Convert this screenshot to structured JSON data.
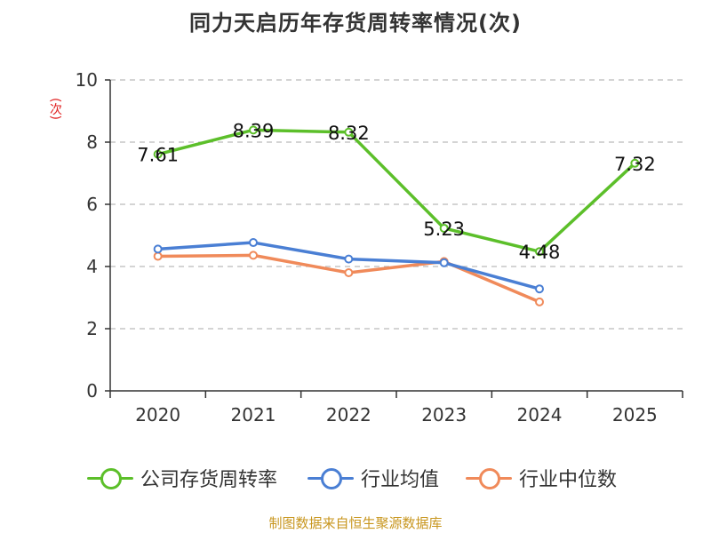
{
  "chart_data": {
    "type": "line",
    "title": "同力天启历年存货周转率情况(次)",
    "ylabel": "(次)",
    "xlabel": "",
    "categories": [
      "2020",
      "2021",
      "2022",
      "2023",
      "2024",
      "2025"
    ],
    "ylim": [
      0,
      10
    ],
    "yticks": [
      0,
      2,
      4,
      6,
      8,
      10
    ],
    "grid": true,
    "legend_position": "bottom",
    "series": [
      {
        "name": "公司存货周转率",
        "color": "#5cbf2a",
        "values": [
          7.61,
          8.39,
          8.32,
          5.23,
          4.48,
          7.32
        ],
        "data_labels": [
          "7.61",
          "8.39",
          "8.32",
          "5.23",
          "4.48",
          "7.32"
        ]
      },
      {
        "name": "行业均值",
        "color": "#4a7fd4",
        "values": [
          4.56,
          4.77,
          4.24,
          4.12,
          3.28,
          null
        ]
      },
      {
        "name": "行业中位数",
        "color": "#f08a5a",
        "values": [
          4.33,
          4.36,
          3.8,
          4.16,
          2.86,
          null
        ]
      }
    ]
  },
  "source": "制图数据来自恒生聚源数据库"
}
